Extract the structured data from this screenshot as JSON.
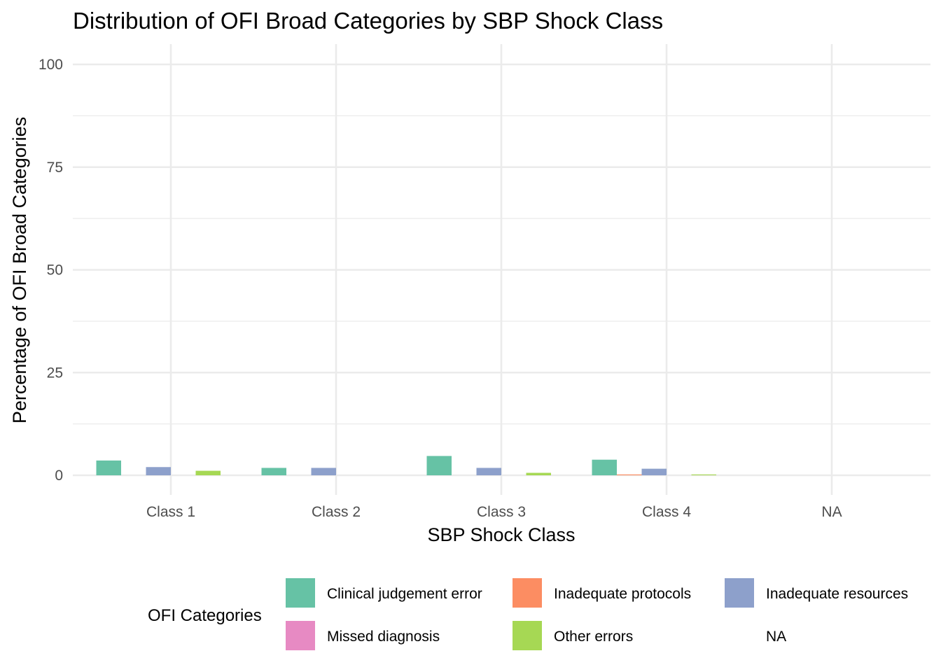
{
  "chart_data": {
    "type": "bar",
    "title": "Distribution of OFI Broad Categories by SBP Shock Class",
    "xlabel": "SBP Shock Class",
    "ylabel": "Percentage of OFI Broad Categories",
    "ylim": [
      0,
      100
    ],
    "yticks": [
      0,
      25,
      50,
      75,
      100
    ],
    "grid": true,
    "legend_position": "bottom",
    "legend_title": "OFI Categories",
    "categories": [
      "Class 1",
      "Class 2",
      "Class 3",
      "Class 4",
      "NA"
    ],
    "series": [
      {
        "name": "Clinical judgement error",
        "color": "#66C2A5",
        "values": [
          3.6,
          1.8,
          4.7,
          3.8,
          null
        ]
      },
      {
        "name": "Inadequate protocols",
        "color": "#FC8D62",
        "values": [
          null,
          null,
          null,
          0.2,
          null
        ]
      },
      {
        "name": "Inadequate resources",
        "color": "#8DA0CB",
        "values": [
          2.0,
          1.8,
          1.8,
          1.6,
          null
        ]
      },
      {
        "name": "Missed diagnosis",
        "color": "#E78AC3",
        "values": [
          null,
          null,
          null,
          null,
          null
        ]
      },
      {
        "name": "Other errors",
        "color": "#A6D854",
        "values": [
          1.1,
          null,
          0.6,
          0.2,
          null
        ]
      },
      {
        "name": "NA",
        "color": "",
        "values": [
          null,
          null,
          null,
          null,
          null
        ]
      }
    ]
  }
}
